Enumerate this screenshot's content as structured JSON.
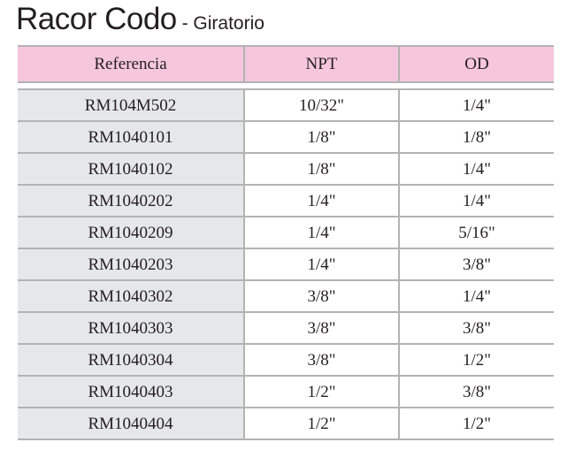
{
  "title": {
    "main": "Racor Codo",
    "sub": " - Giratorio"
  },
  "table": {
    "headers": [
      "Referencia",
      "NPT",
      "OD"
    ],
    "rows": [
      [
        "RM104M502",
        "10/32\"",
        "1/4\""
      ],
      [
        "RM1040101",
        "1/8\"",
        "1/8\""
      ],
      [
        "RM1040102",
        "1/8\"",
        "1/4\""
      ],
      [
        "RM1040202",
        "1/4\"",
        "1/4\""
      ],
      [
        "RM1040209",
        "1/4\"",
        "5/16\""
      ],
      [
        "RM1040203",
        "1/4\"",
        "3/8\""
      ],
      [
        "RM1040302",
        "3/8\"",
        "1/4\""
      ],
      [
        "RM1040303",
        "3/8\"",
        "3/8\""
      ],
      [
        "RM1040304",
        "3/8\"",
        "1/2\""
      ],
      [
        "RM1040403",
        "1/2\"",
        "3/8\""
      ],
      [
        "RM1040404",
        "1/2\"",
        "1/2\""
      ]
    ]
  },
  "colors": {
    "header_fill": "#f5c6dc",
    "reference_column_fill": "#e6e7e8",
    "rule_color": "#b3b3b3",
    "text_color": "#231f20"
  }
}
